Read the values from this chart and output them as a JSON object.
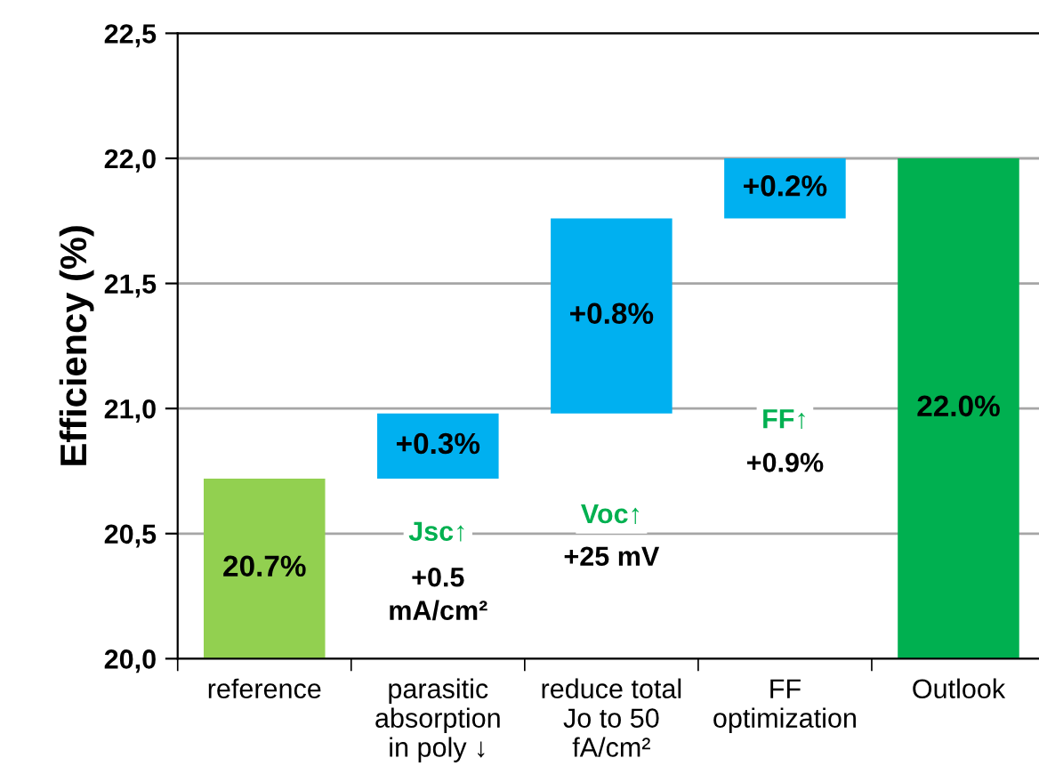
{
  "chart_data": {
    "type": "bar",
    "ylabel": "Efficiency (%)",
    "categories": [
      "reference",
      "parasitic\nabsorption\nin poly ↓",
      "reduce total\nJo to 50\nfA/cm²",
      "FF\noptimization",
      "Outlook"
    ],
    "values": [
      20.72,
      0.26,
      0.78,
      0.24,
      22.0
    ],
    "base": [
      null,
      20.72,
      20.98,
      21.76,
      null
    ],
    "colors": [
      "#92d050",
      "#00b0f0",
      "#00b0f0",
      "#00b0f0",
      "#00b050"
    ],
    "value_labels": [
      "20.7%",
      "+0.3%",
      "+0.8%",
      "+0.2%",
      "22.0%"
    ],
    "ylim": [
      20.0,
      22.5
    ],
    "yticks": [
      {
        "value": 20.0,
        "label": "20,0"
      },
      {
        "value": 20.5,
        "label": "20,5"
      },
      {
        "value": 21.0,
        "label": "21,0"
      },
      {
        "value": 21.5,
        "label": "21,5"
      },
      {
        "value": 22.0,
        "label": "22,0"
      },
      {
        "value": 22.5,
        "label": "22,5"
      }
    ],
    "grid": "y",
    "annotations": [
      "Jsc↑",
      "+0.5\nmA/cm²",
      "Voc↑",
      "+25 mV",
      "FF↑",
      "+0.9%"
    ]
  }
}
